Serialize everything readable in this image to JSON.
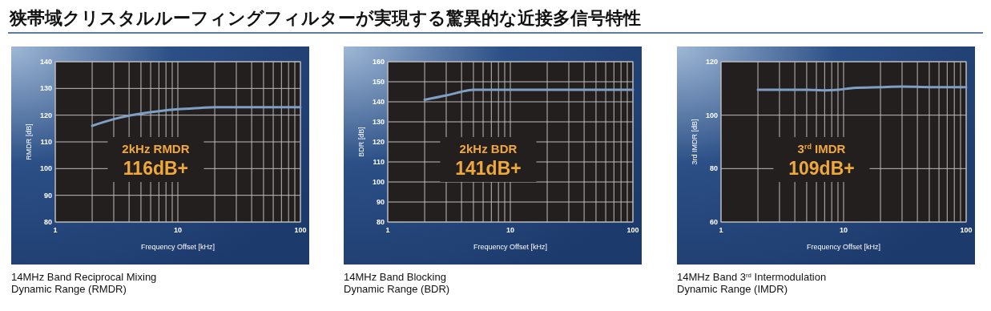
{
  "chart_data": [
    {
      "type": "line",
      "title": "狭帯域クリスタルルーフィングフィルターが実現する驚異的な近接多信号特性",
      "xlabel": "Frequency Offset [kHz]",
      "ylabel": "RMDR [dB]",
      "log": "x",
      "xlim": [
        1,
        100
      ],
      "xticks": [
        1,
        {
          "value": 2,
          "label": null
        },
        {
          "value": 3,
          "label": null
        },
        {
          "value": 4,
          "label": null
        },
        {
          "value": 5,
          "label": null
        },
        {
          "value": 6,
          "label": null
        },
        {
          "value": 7,
          "label": null
        },
        {
          "value": 8,
          "label": null
        },
        {
          "value": 9,
          "label": null
        },
        10,
        {
          "value": 20,
          "label": null
        },
        {
          "value": 30,
          "label": null
        },
        {
          "value": 40,
          "label": null
        },
        {
          "value": 50,
          "label": null
        },
        {
          "value": 60,
          "label": null
        },
        {
          "value": 70,
          "label": null
        },
        {
          "value": 80,
          "label": null
        },
        {
          "value": 90,
          "label": null
        },
        100
      ],
      "ylim": [
        80,
        140
      ],
      "yticks": [
        80,
        90,
        100,
        110,
        120,
        130,
        140
      ],
      "grid": true,
      "series": [
        {
          "color": "#7f9fc4",
          "x": [
            2,
            3,
            4,
            5,
            7,
            10,
            15,
            20,
            50,
            100
          ],
          "values": [
            116,
            118.5,
            119.8,
            120.6,
            121.5,
            122.2,
            122.7,
            123,
            123,
            123
          ]
        }
      ],
      "annotations": [
        "2kHz RMDR",
        "116dB+",
        "14MHz Band Reciprocal Mixing\nDynamic Range (RMDR)"
      ]
    },
    {
      "type": "line",
      "xlabel": "Frequency Offset [kHz]",
      "ylabel": "BDR [dB]",
      "log": "x",
      "xlim": [
        1,
        100
      ],
      "xticks": [
        1,
        {
          "value": 2,
          "label": null
        },
        {
          "value": 3,
          "label": null
        },
        {
          "value": 4,
          "label": null
        },
        {
          "value": 5,
          "label": null
        },
        {
          "value": 6,
          "label": null
        },
        {
          "value": 7,
          "label": null
        },
        {
          "value": 8,
          "label": null
        },
        {
          "value": 9,
          "label": null
        },
        10,
        {
          "value": 20,
          "label": null
        },
        {
          "value": 30,
          "label": null
        },
        {
          "value": 40,
          "label": null
        },
        {
          "value": 50,
          "label": null
        },
        {
          "value": 60,
          "label": null
        },
        {
          "value": 70,
          "label": null
        },
        {
          "value": 80,
          "label": null
        },
        {
          "value": 90,
          "label": null
        },
        100
      ],
      "ylim": [
        80,
        160
      ],
      "yticks": [
        80,
        90,
        100,
        110,
        120,
        130,
        140,
        150,
        160
      ],
      "grid": true,
      "series": [
        {
          "color": "#7f9fc4",
          "x": [
            2,
            3,
            4,
            4.5,
            5,
            10,
            100
          ],
          "values": [
            141,
            143.2,
            145,
            145.7,
            146,
            146,
            146
          ]
        }
      ],
      "annotations": [
        "2kHz BDR",
        "141dB+",
        "14MHz Band Blocking\nDynamic Range (BDR)"
      ]
    },
    {
      "type": "line",
      "xlabel": "Frequency Offset [kHz]",
      "ylabel": "3rd IMDR [dB]",
      "log": "x",
      "xlim": [
        1,
        100
      ],
      "xticks": [
        1,
        {
          "value": 2,
          "label": null
        },
        {
          "value": 3,
          "label": null
        },
        {
          "value": 4,
          "label": null
        },
        {
          "value": 5,
          "label": null
        },
        {
          "value": 6,
          "label": null
        },
        {
          "value": 7,
          "label": null
        },
        {
          "value": 8,
          "label": null
        },
        {
          "value": 9,
          "label": null
        },
        10,
        {
          "value": 20,
          "label": null
        },
        {
          "value": 30,
          "label": null
        },
        {
          "value": 40,
          "label": null
        },
        {
          "value": 50,
          "label": null
        },
        {
          "value": 60,
          "label": null
        },
        {
          "value": 70,
          "label": null
        },
        {
          "value": 80,
          "label": null
        },
        {
          "value": 90,
          "label": null
        },
        100
      ],
      "ylim": [
        60,
        120
      ],
      "yticks": [
        60,
        80,
        100,
        120
      ],
      "grid": true,
      "series": [
        {
          "color": "#7f9fc4",
          "x": [
            2,
            5,
            7,
            9,
            12,
            20,
            30,
            50,
            100
          ],
          "values": [
            109.5,
            109.5,
            109.3,
            109.5,
            110.2,
            110.5,
            110.7,
            110.5,
            110.5
          ]
        }
      ],
      "annotations": [
        "3$^{rd}$ IMDR",
        "109dB+",
        "14MHz Band 3$^{rd}$ Intermodulation\nDynamic Range (IMDR)"
      ]
    }
  ]
}
